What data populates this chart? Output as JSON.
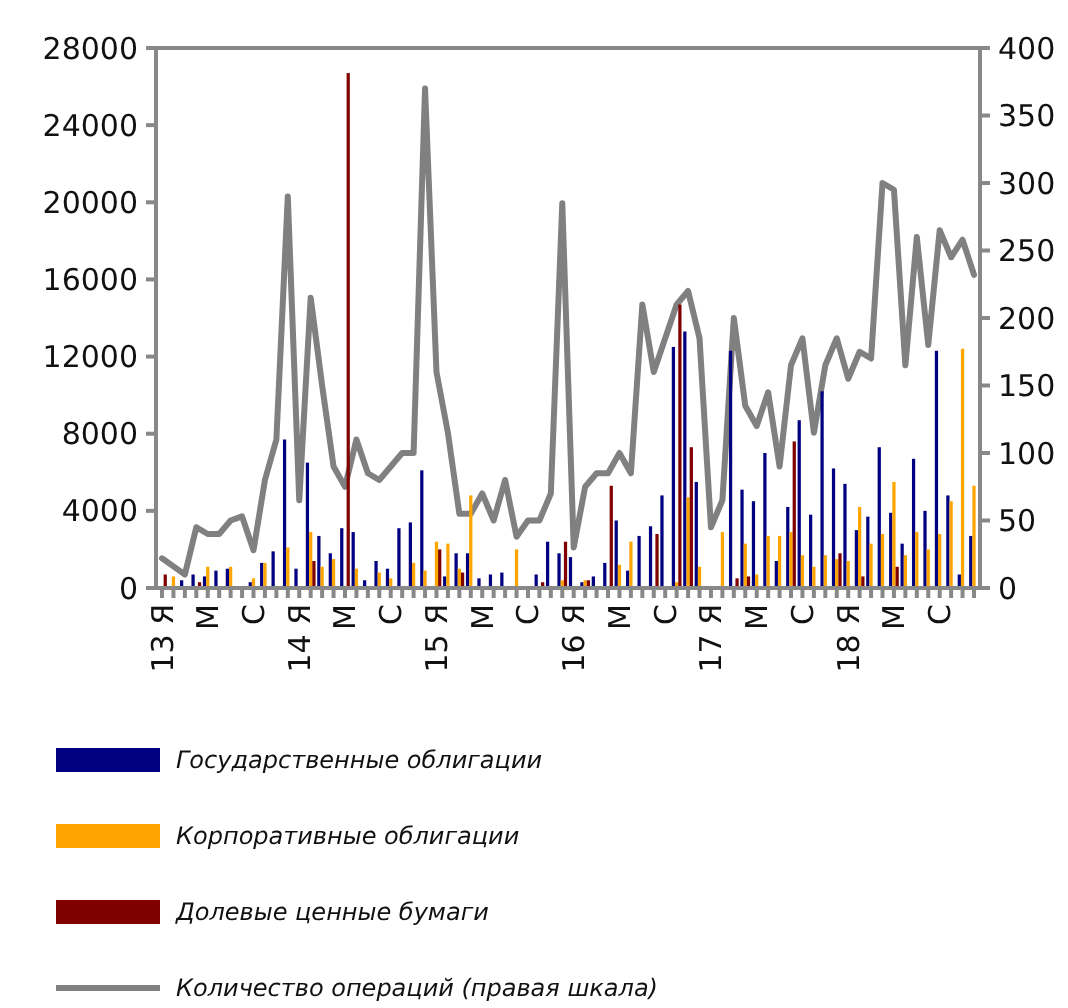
{
  "chart_data": {
    "type": "bar",
    "categories": [
      "13 Я",
      null,
      null,
      null,
      "М",
      null,
      null,
      null,
      "С",
      null,
      null,
      null,
      "14 Я",
      null,
      null,
      null,
      "М",
      null,
      null,
      null,
      "С",
      null,
      null,
      null,
      "15 Я",
      null,
      null,
      null,
      "М",
      null,
      null,
      null,
      "С",
      null,
      null,
      null,
      "16 Я",
      null,
      null,
      null,
      "М",
      null,
      null,
      null,
      "С",
      null,
      null,
      null,
      "17 Я",
      null,
      null,
      null,
      "М",
      null,
      null,
      null,
      "С",
      null,
      null,
      null,
      "18 Я",
      null,
      null,
      null,
      "М",
      null,
      null,
      null,
      "С",
      null,
      null,
      null
    ],
    "series": [
      {
        "name": "Государственные облигации",
        "color": "#000080",
        "values": [
          0,
          0,
          400,
          700,
          600,
          900,
          1000,
          0,
          300,
          1300,
          1900,
          7700,
          1000,
          6500,
          2700,
          1800,
          3100,
          2900,
          400,
          1400,
          1000,
          3100,
          3400,
          6100,
          0,
          600,
          1800,
          1800,
          500,
          700,
          800,
          0,
          null,
          700,
          2400,
          1800,
          1600,
          300,
          600,
          1300,
          3500,
          900,
          2700,
          3200,
          4800,
          12500,
          13300,
          5500,
          0,
          null,
          12300,
          5100,
          4500,
          7000,
          1400,
          4200,
          8700,
          3800,
          10200,
          6200,
          5400,
          3000,
          3700,
          7300,
          3900,
          2300,
          6700,
          4000,
          12300,
          4800,
          700,
          2700
        ]
      },
      {
        "name": "Корпоративные облигации",
        "color": "#ffa500",
        "values": [
          0,
          600,
          0,
          0,
          1100,
          0,
          1100,
          0,
          500,
          1300,
          0,
          2100,
          0,
          2900,
          1100,
          1500,
          0,
          1000,
          0,
          800,
          500,
          0,
          1300,
          900,
          2400,
          2300,
          1000,
          4800,
          null,
          0,
          0,
          2000,
          0,
          0,
          0,
          400,
          0,
          400,
          0,
          0,
          1200,
          2400,
          0,
          0,
          0,
          300,
          4700,
          1100,
          0,
          2900,
          0,
          2300,
          700,
          2700,
          2700,
          2900,
          1700,
          1100,
          1700,
          1500,
          1400,
          4200,
          2300,
          2800,
          5500,
          1700,
          2900,
          2000,
          2800,
          4500,
          12400,
          5300
        ]
      },
      {
        "name": "Долевые ценные бумаги",
        "color": "#800000",
        "values": [
          700,
          0,
          0,
          300,
          0,
          0,
          0,
          0,
          0,
          0,
          0,
          0,
          0,
          1400,
          0,
          0,
          26700,
          0,
          0,
          0,
          0,
          0,
          0,
          0,
          2000,
          0,
          800,
          0,
          0,
          0,
          0,
          0,
          0,
          300,
          0,
          2400,
          0,
          400,
          0,
          5300,
          0,
          0,
          0,
          2800,
          0,
          14700,
          7300,
          0,
          0,
          0,
          500,
          600,
          0,
          0,
          0,
          7600,
          0,
          0,
          0,
          1800,
          0,
          600,
          0,
          0,
          1100,
          0,
          0,
          0,
          0,
          0,
          0,
          0
        ]
      },
      {
        "name": "Количество операций (правая шкала)",
        "color": "#808080",
        "type": "line",
        "axis": "y2",
        "values": [
          22,
          16,
          10,
          45,
          40,
          40,
          50,
          53,
          28,
          80,
          110,
          290,
          65,
          215,
          150,
          90,
          75,
          110,
          85,
          80,
          90,
          100,
          100,
          370,
          160,
          115,
          55,
          55,
          70,
          50,
          80,
          38,
          50,
          50,
          70,
          285,
          30,
          75,
          85,
          85,
          100,
          85,
          210,
          160,
          185,
          210,
          220,
          185,
          45,
          65,
          200,
          135,
          120,
          145,
          90,
          165,
          185,
          115,
          165,
          185,
          155,
          175,
          170,
          300,
          295,
          165,
          260,
          180,
          265,
          245,
          258,
          232
        ]
      }
    ],
    "ylim": [
      0,
      28000
    ],
    "yticks": [
      0,
      4000,
      8000,
      12000,
      16000,
      20000,
      24000,
      28000
    ],
    "y2lim": [
      0,
      400
    ],
    "y2ticks": [
      0,
      50,
      100,
      150,
      200,
      250,
      300,
      350,
      400
    ],
    "legend": "bottom",
    "grid": false
  }
}
